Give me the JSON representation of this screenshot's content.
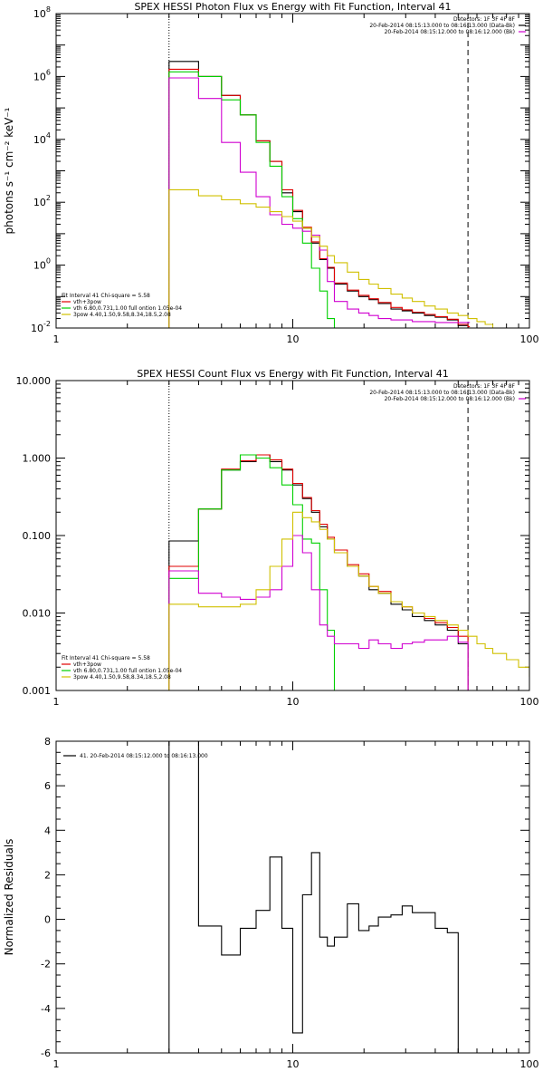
{
  "chart_data": [
    {
      "type": "line",
      "title": "SPEX HESSI Photon Flux vs Energy with Fit Function, Interval 41",
      "ylabel": "photons s⁻¹ cm⁻² keV⁻¹",
      "xlabel": "",
      "x_scale": "log",
      "y_scale": "log",
      "xlim": [
        1,
        100
      ],
      "ylim": [
        0.01,
        100000000
      ],
      "x_ticks": [
        {
          "v": 1,
          "label": "1"
        },
        {
          "v": 10,
          "label": "10"
        },
        {
          "v": 100,
          "label": "100"
        }
      ],
      "y_ticks": [
        {
          "v": 0.01,
          "base": "10",
          "exp": "-2"
        },
        {
          "v": 1,
          "base": "10",
          "exp": "0"
        },
        {
          "v": 100,
          "base": "10",
          "exp": "2"
        },
        {
          "v": 10000,
          "base": "10",
          "exp": "4"
        },
        {
          "v": 1000000,
          "base": "10",
          "exp": "6"
        },
        {
          "v": 100000000,
          "base": "10",
          "exp": "8"
        }
      ],
      "vlines": [
        {
          "x": 3,
          "style": "dotted"
        },
        {
          "x": 55,
          "style": "dashed"
        }
      ],
      "info_right": [
        {
          "text": "Detectors: 1F 3F 4F 8F",
          "color": ""
        },
        {
          "text": "20-Feb-2014 08:15:13.000 to 08:16:13.000 (Data-Bk)",
          "color": "#000000"
        },
        {
          "text": "20-Feb-2014 08:15:12.000 to 08:16:12.000 (Bk)",
          "color": "#d000d0"
        }
      ],
      "info_left": [
        {
          "text": "Fit Interval 41   Chi-square = 5.58",
          "color": ""
        },
        {
          "text": "vth+3pow",
          "color": "#e00000"
        },
        {
          "text": "vth 6.80,0.731,1.00  full ontion 1.05e-04",
          "color": "#00d000"
        },
        {
          "text": "3pow 4.40,1.50,9.58,8.34,18.5,2.08",
          "color": "#d0c000"
        }
      ],
      "series": [
        {
          "color": "#000000",
          "x": [
            3,
            4,
            5,
            6,
            7,
            8,
            9,
            10,
            11,
            12,
            13,
            14,
            15,
            17,
            19,
            21,
            23,
            26,
            29,
            32,
            36,
            40,
            45,
            50,
            55,
            56
          ],
          "y": [
            3000000,
            1000000,
            250000,
            60000,
            9000,
            2000,
            200,
            50,
            15,
            5,
            1.5,
            0.8,
            0.25,
            0.15,
            0.1,
            0.08,
            0.06,
            0.04,
            0.035,
            0.03,
            0.025,
            0.022,
            0.018,
            0.012,
            0.01,
            0.01
          ]
        },
        {
          "color": "#e00000",
          "x": [
            3,
            4,
            5,
            6,
            7,
            8,
            9,
            10,
            11,
            12,
            13,
            14,
            15,
            17,
            19,
            21,
            23,
            26,
            29,
            32,
            36,
            40,
            45,
            50,
            55,
            56
          ],
          "y": [
            1700000,
            1000000,
            250000,
            60000,
            9000,
            2000,
            250,
            55,
            16,
            5.5,
            1.6,
            0.85,
            0.27,
            0.16,
            0.11,
            0.085,
            0.065,
            0.045,
            0.038,
            0.032,
            0.027,
            0.023,
            0.019,
            0.013,
            0.011,
            0.011
          ]
        },
        {
          "color": "#00d000",
          "x": [
            3,
            4,
            5,
            6,
            7,
            8,
            9,
            10,
            11,
            12,
            13,
            14,
            15
          ],
          "y": [
            1400000,
            1000000,
            180000,
            60000,
            8000,
            1400,
            150,
            30,
            5,
            0.8,
            0.15,
            0.02,
            0.001
          ]
        },
        {
          "color": "#d000d0",
          "x": [
            3,
            4,
            5,
            6,
            7,
            8,
            9,
            10,
            11,
            12,
            13,
            14,
            15,
            17,
            19,
            21,
            23,
            26,
            29,
            32,
            36,
            40,
            45,
            50,
            55,
            56
          ],
          "y": [
            900000,
            200000,
            8000,
            900,
            150,
            40,
            20,
            15,
            12,
            9,
            3,
            0.3,
            0.07,
            0.04,
            0.03,
            0.025,
            0.02,
            0.018,
            0.018,
            0.016,
            0.016,
            0.015,
            0.015,
            0.015,
            0.015,
            0.015
          ]
        },
        {
          "color": "#d0c000",
          "x": [
            3,
            4,
            5,
            6,
            7,
            8,
            9,
            10,
            11,
            12,
            13,
            14,
            15,
            17,
            19,
            21,
            23,
            26,
            29,
            32,
            36,
            40,
            45,
            50,
            55,
            60,
            65,
            70,
            80
          ],
          "y": [
            250,
            160,
            120,
            90,
            70,
            50,
            35,
            25,
            15,
            8,
            4,
            2,
            1.2,
            0.6,
            0.35,
            0.25,
            0.18,
            0.12,
            0.09,
            0.07,
            0.05,
            0.04,
            0.03,
            0.025,
            0.02,
            0.016,
            0.013,
            0.01,
            0.01
          ]
        }
      ]
    },
    {
      "type": "line",
      "title": "SPEX HESSI Count Flux vs Energy with Fit Function, Interval 41",
      "ylabel": "",
      "xlabel": "",
      "x_scale": "log",
      "y_scale": "log",
      "xlim": [
        1,
        100
      ],
      "ylim": [
        0.001,
        10
      ],
      "x_ticks": [
        {
          "v": 1,
          "label": "1"
        },
        {
          "v": 10,
          "label": "10"
        },
        {
          "v": 100,
          "label": "100"
        }
      ],
      "y_ticks": [
        {
          "v": 0.001,
          "label": "0.001"
        },
        {
          "v": 0.01,
          "label": "0.010"
        },
        {
          "v": 0.1,
          "label": "0.100"
        },
        {
          "v": 1,
          "label": "1.000"
        },
        {
          "v": 10,
          "label": "10.000"
        }
      ],
      "vlines": [
        {
          "x": 3,
          "style": "dotted"
        },
        {
          "x": 55,
          "style": "dashed"
        }
      ],
      "info_right": [
        {
          "text": "Detectors: 1F 3F 4F 8F",
          "color": ""
        },
        {
          "text": "20-Feb-2014 08:15:13.000 to 08:16:13.000 (Data-Bk)",
          "color": "#000000"
        },
        {
          "text": "20-Feb-2014 08:15:12.000 to 08:16:12.000 (Bk)",
          "color": "#d000d0"
        }
      ],
      "info_left": [
        {
          "text": "Fit Interval 41   Chi-square = 5.58",
          "color": ""
        },
        {
          "text": "vth+3pow",
          "color": "#e00000"
        },
        {
          "text": "vth 6.80,0.731,1.00  full ontion 1.05e-04",
          "color": "#00d000"
        },
        {
          "text": "3pow 4.40,1.50,9.58,8.34,18.5,2.08",
          "color": "#d0c000"
        }
      ],
      "series": [
        {
          "color": "#000000",
          "x": [
            3,
            4,
            5,
            6,
            7,
            8,
            9,
            10,
            11,
            12,
            13,
            14,
            15,
            17,
            19,
            21,
            23,
            26,
            29,
            32,
            36,
            40,
            45,
            50,
            55
          ],
          "y": [
            0.085,
            0.22,
            0.7,
            0.9,
            1.1,
            0.9,
            0.7,
            0.45,
            0.3,
            0.2,
            0.13,
            0.09,
            0.06,
            0.04,
            0.03,
            0.02,
            0.018,
            0.013,
            0.011,
            0.009,
            0.008,
            0.007,
            0.006,
            0.004,
            0.001
          ]
        },
        {
          "color": "#e00000",
          "x": [
            3,
            4,
            5,
            6,
            7,
            8,
            9,
            10,
            11,
            12,
            13,
            14,
            15,
            17,
            19,
            21,
            23,
            26,
            29,
            32,
            36,
            40,
            45,
            50,
            55
          ],
          "y": [
            0.04,
            0.22,
            0.72,
            0.92,
            1.1,
            0.95,
            0.72,
            0.47,
            0.31,
            0.21,
            0.14,
            0.095,
            0.065,
            0.042,
            0.032,
            0.022,
            0.019,
            0.014,
            0.012,
            0.01,
            0.0085,
            0.0075,
            0.0065,
            0.005,
            0.001
          ]
        },
        {
          "color": "#00d000",
          "x": [
            3,
            4,
            5,
            6,
            7,
            8,
            9,
            10,
            11,
            12,
            13,
            14,
            15
          ],
          "y": [
            0.028,
            0.22,
            0.7,
            1.1,
            1.0,
            0.75,
            0.45,
            0.25,
            0.09,
            0.08,
            0.02,
            0.006,
            0.001
          ]
        },
        {
          "color": "#d000d0",
          "x": [
            3,
            4,
            5,
            6,
            7,
            8,
            9,
            10,
            11,
            12,
            13,
            14,
            15,
            17,
            19,
            21,
            23,
            26,
            29,
            32,
            36,
            40,
            45,
            50,
            55
          ],
          "y": [
            0.035,
            0.018,
            0.016,
            0.015,
            0.016,
            0.02,
            0.04,
            0.1,
            0.06,
            0.02,
            0.007,
            0.005,
            0.004,
            0.004,
            0.0035,
            0.0045,
            0.004,
            0.0035,
            0.004,
            0.0042,
            0.0045,
            0.0045,
            0.005,
            0.0042,
            0.001
          ]
        },
        {
          "color": "#d0c000",
          "x": [
            3,
            4,
            5,
            6,
            7,
            8,
            9,
            10,
            11,
            12,
            13,
            14,
            15,
            17,
            19,
            21,
            23,
            26,
            29,
            32,
            36,
            40,
            45,
            50,
            55,
            60,
            65,
            70,
            80,
            90,
            100
          ],
          "y": [
            0.013,
            0.012,
            0.012,
            0.013,
            0.02,
            0.04,
            0.09,
            0.2,
            0.17,
            0.15,
            0.12,
            0.09,
            0.06,
            0.04,
            0.03,
            0.022,
            0.018,
            0.014,
            0.012,
            0.01,
            0.009,
            0.008,
            0.007,
            0.006,
            0.005,
            0.004,
            0.0035,
            0.003,
            0.0025,
            0.002,
            0.0015
          ]
        }
      ]
    },
    {
      "type": "line",
      "title": "",
      "ylabel": "Normalized Residuals",
      "xlabel": "",
      "x_scale": "log",
      "y_scale": "linear",
      "xlim": [
        1,
        100
      ],
      "ylim": [
        -6,
        8
      ],
      "x_ticks": [
        {
          "v": 1,
          "label": "1"
        },
        {
          "v": 10,
          "label": "10"
        },
        {
          "v": 100,
          "label": "100"
        }
      ],
      "y_ticks": [
        {
          "v": -6,
          "label": "-6"
        },
        {
          "v": -4,
          "label": "-4"
        },
        {
          "v": -2,
          "label": "-2"
        },
        {
          "v": 0,
          "label": "0"
        },
        {
          "v": 2,
          "label": "2"
        },
        {
          "v": 4,
          "label": "4"
        },
        {
          "v": 6,
          "label": "6"
        },
        {
          "v": 8,
          "label": "8"
        }
      ],
      "legend": [
        {
          "text": "41. 20-Feb-2014 08:15:12.000 to 08:16:13.000",
          "color": "#000000"
        }
      ],
      "series": [
        {
          "color": "#000000",
          "x": [
            3,
            4,
            5,
            6,
            7,
            8,
            9,
            10,
            11,
            12,
            13,
            14,
            15,
            17,
            19,
            21,
            23,
            26,
            29,
            32,
            36,
            40,
            45,
            50,
            55
          ],
          "y": [
            8,
            -0.3,
            -1.6,
            -0.4,
            0.4,
            2.8,
            -0.4,
            -5.1,
            1.1,
            3.0,
            -0.8,
            -1.2,
            -0.8,
            0.7,
            -0.5,
            -0.3,
            0.1,
            0.2,
            0.6,
            0.3,
            0.3,
            -0.4,
            -0.6,
            -6.0,
            -6.0
          ]
        }
      ]
    }
  ]
}
